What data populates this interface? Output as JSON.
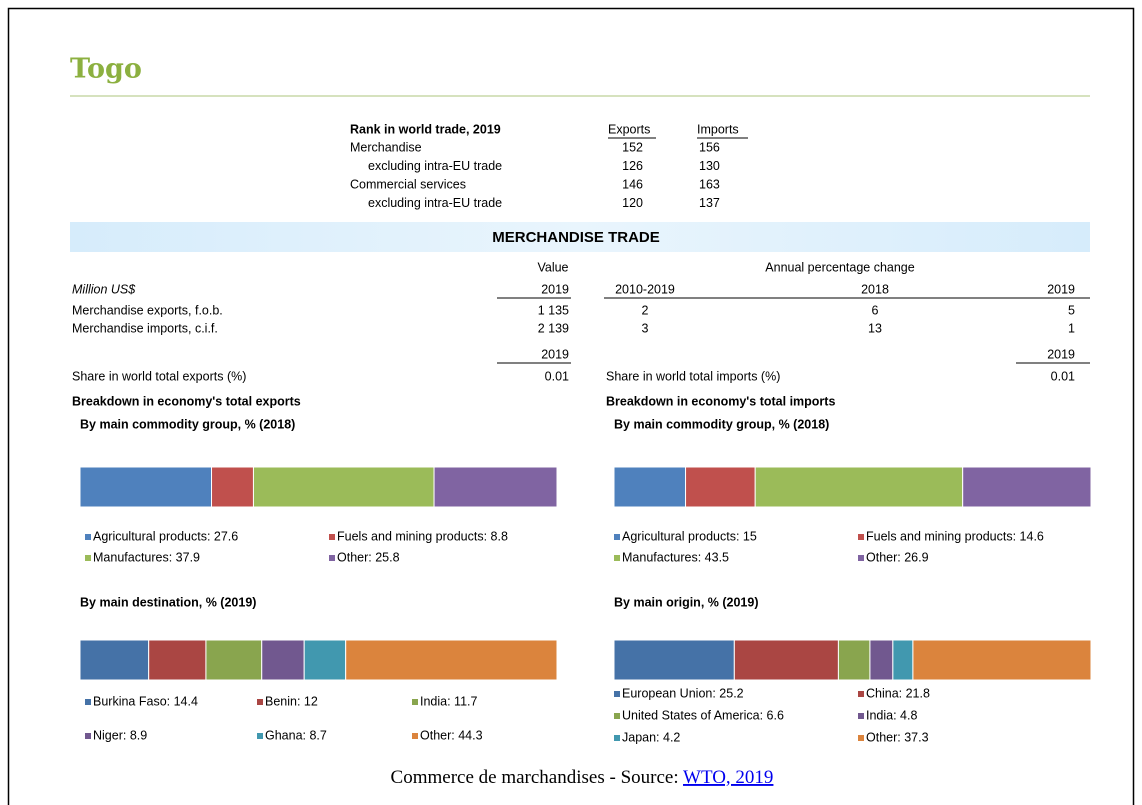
{
  "header": {
    "title": "Togo"
  },
  "rank": {
    "title": "Rank in world trade, 2019",
    "columns": [
      "Exports",
      "Imports"
    ],
    "rows": [
      {
        "label": "Merchandise",
        "values": [
          152,
          156
        ]
      },
      {
        "label": "excluding intra-EU trade",
        "values": [
          126,
          130
        ]
      },
      {
        "label": "Commercial services",
        "values": [
          146,
          163
        ]
      },
      {
        "label": "excluding intra-EU trade",
        "values": [
          120,
          137
        ]
      }
    ]
  },
  "section": "MERCHANDISE TRADE",
  "trade": {
    "value_header": "Value",
    "change_header": "Annual percentage change",
    "unit": "Million US$",
    "columns": [
      "2019",
      "2010-2019",
      "2018",
      "2019"
    ],
    "rows": [
      {
        "label": "Merchandise exports, f.o.b.",
        "values": [
          "1 135",
          "2",
          "6",
          "5"
        ]
      },
      {
        "label": "Merchandise imports, c.i.f.",
        "values": [
          "2 139",
          "3",
          "13",
          "1"
        ]
      }
    ]
  },
  "share": [
    {
      "label": "Share in world total exports (%)",
      "year": "2019",
      "value": "0.01"
    },
    {
      "label": "Share in world total imports (%)",
      "year": "2019",
      "value": "0.01"
    }
  ],
  "breakdown": [
    {
      "title": "Breakdown in economy's total exports",
      "charts": [
        {
          "title": "By main commodity group, % (2018)",
          "segments": [
            {
              "label": "Agricultural products: 27.6",
              "value": 27.6,
              "color": "#4f81bd"
            },
            {
              "label": "Fuels and mining products: 8.8",
              "value": 8.8,
              "color": "#c0504d"
            },
            {
              "label": "Manufactures: 37.9",
              "value": 37.9,
              "color": "#9bbb59"
            },
            {
              "label": "Other: 25.8",
              "value": 25.8,
              "color": "#8064a2"
            }
          ]
        },
        {
          "title": "By main destination, % (2019)",
          "segments": [
            {
              "label": "Burkina Faso: 14.4",
              "value": 14.4,
              "color": "#4572a7"
            },
            {
              "label": "Benin: 12",
              "value": 12,
              "color": "#aa4643"
            },
            {
              "label": "India: 11.7",
              "value": 11.7,
              "color": "#89a54e"
            },
            {
              "label": "Niger: 8.9",
              "value": 8.9,
              "color": "#71588f"
            },
            {
              "label": "Ghana: 8.7",
              "value": 8.7,
              "color": "#4198af"
            },
            {
              "label": "Other: 44.3",
              "value": 44.3,
              "color": "#db843d"
            }
          ]
        }
      ]
    },
    {
      "title": "Breakdown in economy's total imports",
      "charts": [
        {
          "title": "By main commodity group, % (2018)",
          "segments": [
            {
              "label": "Agricultural products: 15",
              "value": 15,
              "color": "#4f81bd"
            },
            {
              "label": "Fuels and mining products: 14.6",
              "value": 14.6,
              "color": "#c0504d"
            },
            {
              "label": "Manufactures: 43.5",
              "value": 43.5,
              "color": "#9bbb59"
            },
            {
              "label": "Other: 26.9",
              "value": 26.9,
              "color": "#8064a2"
            }
          ]
        },
        {
          "title": "By main origin, % (2019)",
          "segments": [
            {
              "label": "European Union: 25.2",
              "value": 25.2,
              "color": "#4572a7"
            },
            {
              "label": "China: 21.8",
              "value": 21.8,
              "color": "#aa4643"
            },
            {
              "label": "United States of America: 6.6",
              "value": 6.6,
              "color": "#89a54e"
            },
            {
              "label": "India: 4.8",
              "value": 4.8,
              "color": "#71588f"
            },
            {
              "label": "Japan: 4.2",
              "value": 4.2,
              "color": "#4198af"
            },
            {
              "label": "Other: 37.3",
              "value": 37.3,
              "color": "#db843d"
            }
          ]
        }
      ]
    }
  ],
  "caption": {
    "text": "Commerce de marchandises - Source: ",
    "link": "WTO, 2019"
  }
}
